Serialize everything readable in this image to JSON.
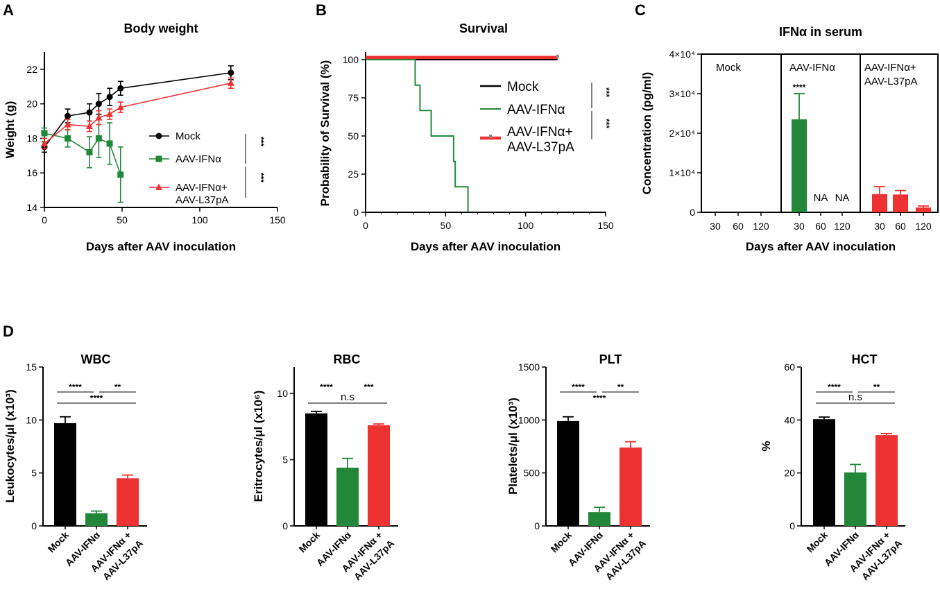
{
  "colors": {
    "mock": "#000000",
    "ifn": "#23873a",
    "l37": "#ee3232"
  },
  "panel_labels": {
    "a": "A",
    "b": "B",
    "c": "C",
    "d": "D"
  },
  "chart_data": [
    {
      "id": "A",
      "type": "line",
      "title": "Body weight",
      "xlabel": "Days after AAV inoculation",
      "ylabel": "Weight (g)",
      "xlim": [
        0,
        150
      ],
      "ylim": [
        14,
        23
      ],
      "xticks": [
        0,
        50,
        100,
        150
      ],
      "yticks": [
        14,
        16,
        18,
        20,
        22
      ],
      "series": [
        {
          "name": "Mock",
          "x": [
            0,
            15,
            29,
            35,
            42,
            49,
            120
          ],
          "y": [
            17.5,
            19.3,
            19.5,
            20.0,
            20.4,
            20.9,
            21.8
          ],
          "err": [
            0.3,
            0.4,
            0.5,
            0.6,
            0.5,
            0.4,
            0.4
          ]
        },
        {
          "name": "AAV-IFNα",
          "x": [
            0,
            15,
            29,
            35,
            42,
            49
          ],
          "y": [
            18.3,
            18.0,
            17.2,
            18.0,
            17.7,
            15.9
          ],
          "err": [
            0.3,
            0.5,
            0.9,
            1.1,
            1.2,
            1.6
          ]
        },
        {
          "name": "AAV-IFNα+\nAAV-L37pA",
          "x": [
            0,
            15,
            29,
            35,
            42,
            49,
            120
          ],
          "y": [
            17.7,
            18.8,
            18.7,
            19.2,
            19.4,
            19.8,
            21.2
          ],
          "err": [
            0.3,
            0.3,
            0.3,
            0.4,
            0.3,
            0.3,
            0.3
          ]
        }
      ],
      "legend": [
        "Mock",
        "AAV-IFNα",
        "AAV-IFNα+",
        "AAV-L37pA"
      ],
      "significance": [
        "***",
        "***"
      ]
    },
    {
      "id": "B",
      "type": "line",
      "title": "Survival",
      "xlabel": "Days after AAV inoculation",
      "ylabel": "Probability of Survival (%)",
      "xlim": [
        0,
        150
      ],
      "ylim": [
        0,
        105
      ],
      "xticks": [
        0,
        50,
        100,
        150
      ],
      "yticks": [
        0,
        25,
        50,
        75,
        100
      ],
      "series": [
        {
          "name": "Mock",
          "steps": [
            [
              0,
              100
            ],
            [
              120,
              100
            ]
          ]
        },
        {
          "name": "AAV-IFNα",
          "steps": [
            [
              0,
              100
            ],
            [
              31,
              100
            ],
            [
              31,
              83.3
            ],
            [
              34,
              83.3
            ],
            [
              34,
              66.7
            ],
            [
              41,
              66.7
            ],
            [
              41,
              50
            ],
            [
              55,
              50
            ],
            [
              55,
              33.3
            ],
            [
              56,
              33.3
            ],
            [
              56,
              16.7
            ],
            [
              64,
              16.7
            ],
            [
              64,
              0
            ]
          ]
        },
        {
          "name": "AAV-IFNα+ AAV-L37pA",
          "steps": [
            [
              0,
              101.5
            ],
            [
              120,
              101.5
            ]
          ]
        }
      ],
      "legend": [
        "Mock",
        "AAV-IFNα",
        "AAV-IFNα+",
        "AAV-L37pA"
      ],
      "significance": [
        "***",
        "***"
      ]
    },
    {
      "id": "C",
      "type": "bar",
      "title": "IFNα in serum",
      "xlabel": "Days after AAV inoculation",
      "ylabel": "Concentration (pg/ml)",
      "ylim": [
        0,
        40000
      ],
      "ytick_labels": [
        "0",
        "1×10⁴",
        "2×10⁴",
        "3×10⁴",
        "4×10⁴"
      ],
      "groups": [
        {
          "name": "Mock",
          "label_lines": [
            "Mock"
          ],
          "categories": [
            "30",
            "60",
            "120"
          ],
          "values": [
            50,
            50,
            50
          ],
          "err": [
            0,
            0,
            0
          ],
          "na": [
            false,
            false,
            false
          ]
        },
        {
          "name": "AAV-IFNα",
          "label_lines": [
            "AAV-IFNα"
          ],
          "categories": [
            "30",
            "60",
            "120"
          ],
          "values": [
            23500,
            0,
            0
          ],
          "err": [
            6500,
            0,
            0
          ],
          "na": [
            false,
            true,
            true
          ],
          "significance": "****"
        },
        {
          "name": "AAV-IFNα+ AAV-L37pA",
          "label_lines": [
            "AAV-IFNα+",
            "AAV-L37pA"
          ],
          "categories": [
            "30",
            "60",
            "120"
          ],
          "values": [
            4600,
            4500,
            1200
          ],
          "err": [
            1900,
            1000,
            400
          ],
          "na": [
            false,
            false,
            false
          ]
        }
      ],
      "na_label": "NA"
    },
    {
      "id": "D1",
      "type": "bar",
      "title": "WBC",
      "ylabel": "Leukocytes/μl (x10³)",
      "ylim": [
        0,
        15
      ],
      "yticks": [
        0,
        5,
        10,
        15
      ],
      "categories": [
        "Mock",
        "AAV-IFNα",
        "AAV-IFNα +\nAAV-L37pA"
      ],
      "values": [
        9.7,
        1.2,
        4.5
      ],
      "err": [
        0.6,
        0.2,
        0.3
      ],
      "brackets": [
        {
          "from": 0,
          "to": 1,
          "level": 0,
          "label": "****"
        },
        {
          "from": 1,
          "to": 2,
          "level": 0,
          "label": "**"
        },
        {
          "from": 0,
          "to": 2,
          "level": 1,
          "label": "****"
        }
      ]
    },
    {
      "id": "D2",
      "type": "bar",
      "title": "RBC",
      "ylabel": "Eritrocytes/μl (x10⁶)",
      "ylim": [
        0,
        12
      ],
      "yticks": [
        0,
        5,
        10
      ],
      "categories": [
        "Mock",
        "AAV-IFNα",
        "AAV-IFNα +\nAAV-L37pA"
      ],
      "values": [
        8.5,
        4.4,
        7.6
      ],
      "err": [
        0.15,
        0.7,
        0.1
      ],
      "brackets": [
        {
          "from": 0,
          "to": 1,
          "level": 0,
          "label": "****",
          "noline": true
        },
        {
          "from": 1,
          "to": 2,
          "level": 0,
          "label": "***",
          "noline": true
        },
        {
          "from": 0,
          "to": 2,
          "level": 1,
          "label": "n.s"
        }
      ]
    },
    {
      "id": "D3",
      "type": "bar",
      "title": "PLT",
      "ylabel": "Platelets/μl (x10³)",
      "ylim": [
        0,
        1500
      ],
      "yticks": [
        0,
        500,
        1000,
        1500
      ],
      "categories": [
        "Mock",
        "AAV-IFNα",
        "AAV-IFNα +\nAAV-L37pA"
      ],
      "values": [
        990,
        130,
        740
      ],
      "err": [
        40,
        45,
        55
      ],
      "brackets": [
        {
          "from": 0,
          "to": 1,
          "level": 0,
          "label": "****"
        },
        {
          "from": 1,
          "to": 2,
          "level": 0,
          "label": "**"
        },
        {
          "from": 0,
          "to": 2,
          "level": 1,
          "label": "****",
          "noline": true
        }
      ]
    },
    {
      "id": "D4",
      "type": "bar",
      "title": "HCT",
      "ylabel": "%",
      "ylim": [
        0,
        60
      ],
      "yticks": [
        0,
        20,
        40,
        60
      ],
      "categories": [
        "Mock",
        "AAV-IFNα",
        "AAV-IFNα +\nAAV-L37pA"
      ],
      "values": [
        40.3,
        20.2,
        34.3
      ],
      "err": [
        0.8,
        3.0,
        0.6
      ],
      "brackets": [
        {
          "from": 0,
          "to": 1,
          "level": 0,
          "label": "****"
        },
        {
          "from": 1,
          "to": 2,
          "level": 0,
          "label": "**"
        },
        {
          "from": 0,
          "to": 2,
          "level": 1,
          "label": "n.s"
        }
      ]
    }
  ]
}
